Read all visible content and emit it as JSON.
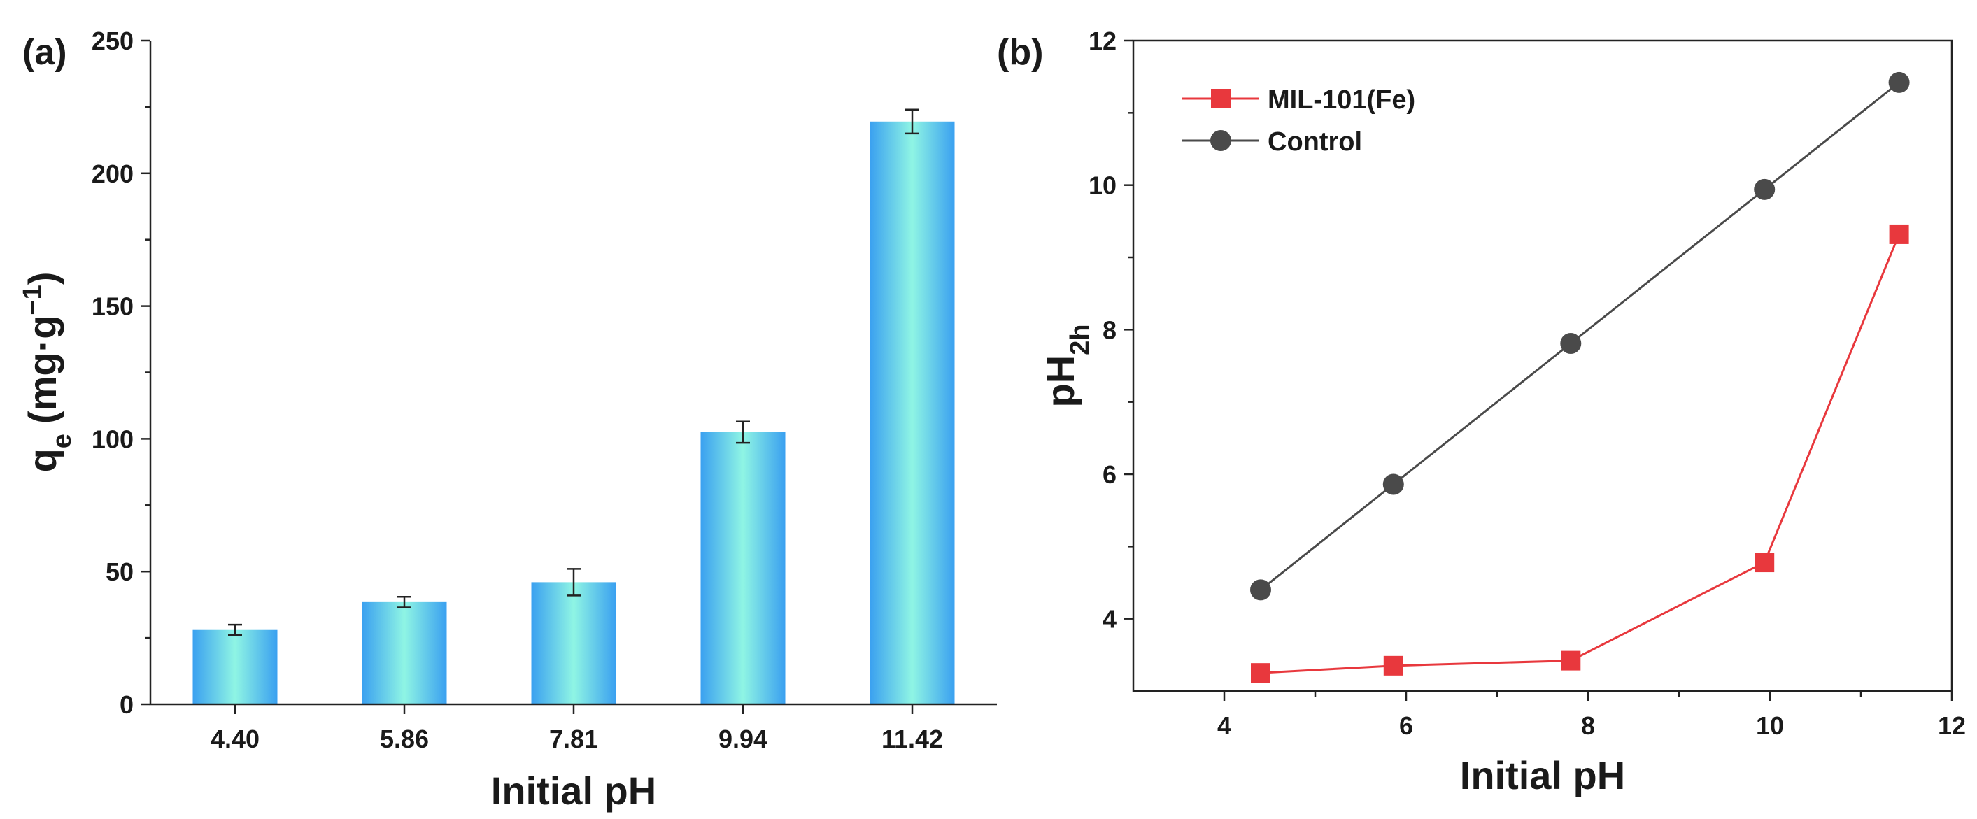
{
  "chart_data": [
    {
      "panel": "(a)",
      "type": "bar",
      "xlabel": "Initial pH",
      "ylabel_main": "q",
      "ylabel_sub": "e",
      "ylabel_unit": "(mg·g",
      "ylabel_sup": "−1",
      "ylabel_close": ")",
      "categories": [
        "4.40",
        "5.86",
        "7.81",
        "9.94",
        "11.42"
      ],
      "values": [
        28,
        38.5,
        46,
        102.5,
        219.5
      ],
      "errors": [
        2,
        2,
        5,
        4,
        4.5
      ],
      "ylim": [
        0,
        250
      ],
      "yticks": [
        "0",
        "50",
        "100",
        "150",
        "200",
        "250"
      ],
      "colors": {
        "bar_edge": "#3aa0f0",
        "bar_center": "#8ff5e4"
      }
    },
    {
      "panel": "(b)",
      "type": "line",
      "xlabel": "Initial pH",
      "ylabel_main": "pH",
      "ylabel_sub": "2h",
      "xlim": [
        3,
        12
      ],
      "ylim": [
        3,
        12
      ],
      "xticks": [
        "4",
        "6",
        "8",
        "10",
        "12"
      ],
      "yticks": [
        "4",
        "6",
        "8",
        "10",
        "12"
      ],
      "legend_position": "top-left",
      "series": [
        {
          "name": "MIL-101(Fe)",
          "marker": "square",
          "color": "#e8383d",
          "x": [
            4.4,
            5.86,
            7.81,
            9.94,
            11.42
          ],
          "y": [
            3.25,
            3.35,
            3.42,
            4.78,
            9.32
          ]
        },
        {
          "name": "Control",
          "marker": "circle",
          "color": "#4a4a4a",
          "x": [
            4.4,
            5.86,
            7.81,
            9.94,
            11.42
          ],
          "y": [
            4.4,
            5.86,
            7.81,
            9.94,
            11.42
          ]
        }
      ]
    }
  ]
}
